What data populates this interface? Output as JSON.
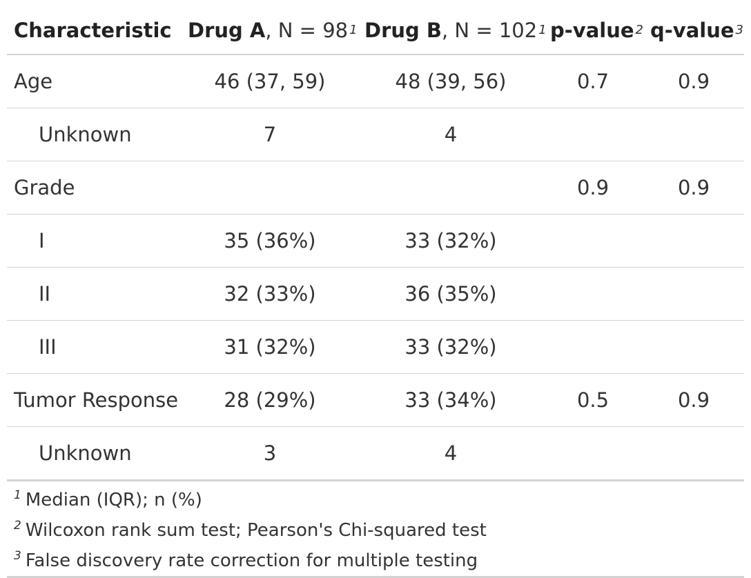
{
  "header": {
    "characteristic": "Characteristic",
    "drug_a_name": "Drug A",
    "drug_a_n": ", N = 98",
    "drug_a_sup": "1",
    "drug_b_name": "Drug B",
    "drug_b_n": ", N = 102",
    "drug_b_sup": "1",
    "pvalue": "p-value",
    "pvalue_sup": "2",
    "qvalue": "q-value",
    "qvalue_sup": "3"
  },
  "rows": [
    {
      "label": "Age",
      "drug_a": "46 (37, 59)",
      "drug_b": "48 (39, 56)",
      "p": "0.7",
      "q": "0.9"
    },
    {
      "label": "Unknown",
      "drug_a": "7",
      "drug_b": "4",
      "p": "",
      "q": ""
    },
    {
      "label": "Grade",
      "drug_a": "",
      "drug_b": "",
      "p": "0.9",
      "q": "0.9"
    },
    {
      "label": "I",
      "drug_a": "35 (36%)",
      "drug_b": "33 (32%)",
      "p": "",
      "q": ""
    },
    {
      "label": "II",
      "drug_a": "32 (33%)",
      "drug_b": "36 (35%)",
      "p": "",
      "q": ""
    },
    {
      "label": "III",
      "drug_a": "31 (32%)",
      "drug_b": "33 (32%)",
      "p": "",
      "q": ""
    },
    {
      "label": "Tumor Response",
      "drug_a": "28 (29%)",
      "drug_b": "33 (34%)",
      "p": "0.5",
      "q": "0.9"
    },
    {
      "label": "Unknown",
      "drug_a": "3",
      "drug_b": "4",
      "p": "",
      "q": ""
    }
  ],
  "footnotes": [
    {
      "mark": "1",
      "text": "Median (IQR); n (%)"
    },
    {
      "mark": "2",
      "text": "Wilcoxon rank sum test; Pearson's Chi-squared test"
    },
    {
      "mark": "3",
      "text": "False discovery rate correction for multiple testing"
    }
  ]
}
